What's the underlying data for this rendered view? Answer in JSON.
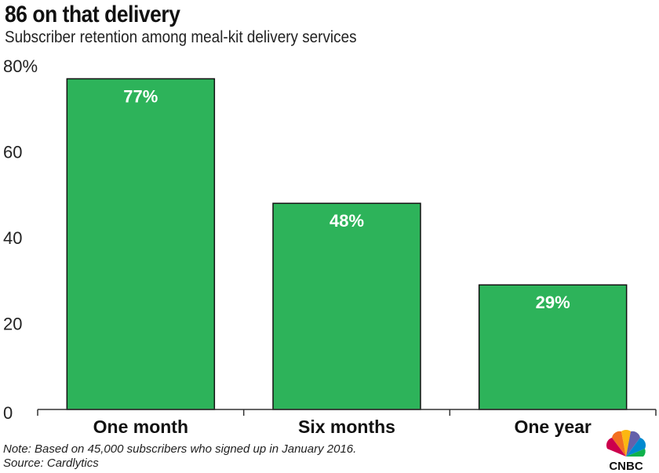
{
  "colors": {
    "bar": "#2db35a",
    "bar_stroke": "#111111",
    "axis": "#333333",
    "grid": "#dddddd"
  },
  "chart_data": {
    "type": "bar",
    "title": "86 on that delivery",
    "subtitle": "Subscriber retention among meal-kit delivery services",
    "categories": [
      "One month",
      "Six months",
      "One year"
    ],
    "values": [
      77,
      48,
      29
    ],
    "data_labels": [
      "77%",
      "48%",
      "29%"
    ],
    "ylim": [
      0,
      80
    ],
    "y_ticks": [
      0,
      20,
      40,
      60,
      80
    ],
    "y_tick_labels": [
      "0",
      "20",
      "40",
      "60",
      "80%"
    ],
    "grid": false,
    "legend": "none"
  },
  "footer": {
    "note": "Note: Based on 45,000 subscribers who signed up in January 2016.",
    "source": "Source: Cardlytics"
  },
  "logo": {
    "text": "CNBC",
    "icon": "cnbc-peacock-icon"
  }
}
